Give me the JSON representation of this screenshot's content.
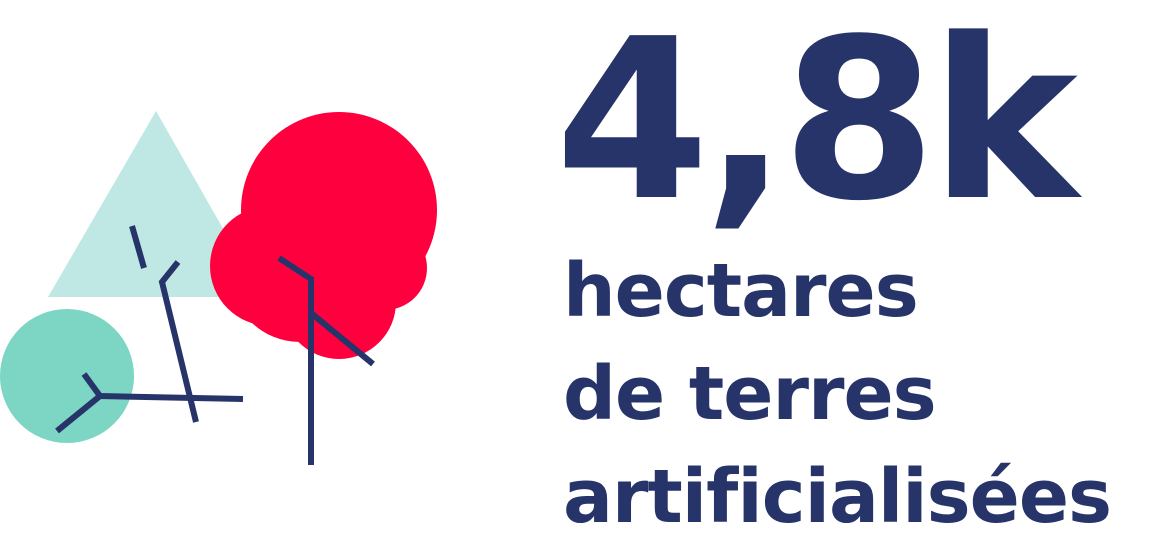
{
  "stat": {
    "value": "4,8k",
    "caption_lines": [
      "hectares",
      "de terres",
      "artificialisées"
    ]
  },
  "colors": {
    "navy": "#273469",
    "red": "#ff003f",
    "mint": "#7dd6c3",
    "light_mint": "#bfe8e5",
    "background": "#ffffff"
  },
  "illustration": {
    "shapes": [
      "triangle",
      "red-tree-crown",
      "green-circle",
      "branches"
    ]
  }
}
